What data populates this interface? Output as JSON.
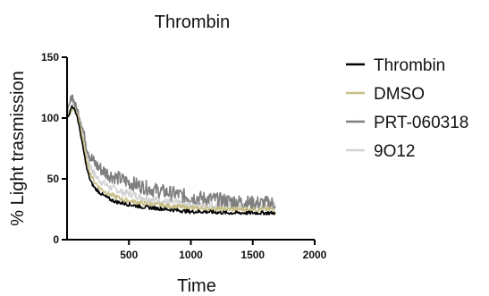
{
  "chart_data": {
    "type": "line",
    "title": "Thrombin",
    "xlabel": "Time",
    "ylabel": "% Light trasmission",
    "xlim": [
      0,
      2000
    ],
    "ylim": [
      0,
      150
    ],
    "xticks": [
      500,
      1000,
      1500,
      2000
    ],
    "yticks": [
      0,
      50,
      100,
      150
    ],
    "grid": false,
    "legend_position": "right",
    "series": [
      {
        "name": "Thrombin",
        "color": "#000000",
        "noise": 1.5,
        "points": [
          [
            0,
            100
          ],
          [
            20,
            104
          ],
          [
            40,
            110
          ],
          [
            60,
            107
          ],
          [
            80,
            102
          ],
          [
            100,
            92
          ],
          [
            130,
            75
          ],
          [
            160,
            58
          ],
          [
            190,
            48
          ],
          [
            220,
            43
          ],
          [
            260,
            39
          ],
          [
            300,
            36
          ],
          [
            350,
            33
          ],
          [
            400,
            31
          ],
          [
            450,
            30
          ],
          [
            500,
            29
          ],
          [
            600,
            27
          ],
          [
            700,
            26
          ],
          [
            800,
            25
          ],
          [
            900,
            24
          ],
          [
            1000,
            23
          ],
          [
            1100,
            23
          ],
          [
            1200,
            22.5
          ],
          [
            1300,
            22
          ],
          [
            1400,
            22
          ],
          [
            1500,
            22
          ],
          [
            1600,
            22
          ],
          [
            1680,
            22
          ]
        ]
      },
      {
        "name": "DMSO",
        "color": "#c8bf86",
        "noise": 2,
        "points": [
          [
            0,
            101
          ],
          [
            30,
            104
          ],
          [
            50,
            108
          ],
          [
            80,
            105
          ],
          [
            100,
            97
          ],
          [
            130,
            82
          ],
          [
            160,
            64
          ],
          [
            190,
            54
          ],
          [
            220,
            48
          ],
          [
            260,
            43
          ],
          [
            300,
            40
          ],
          [
            350,
            37
          ],
          [
            400,
            35
          ],
          [
            450,
            33
          ],
          [
            500,
            32
          ],
          [
            600,
            30
          ],
          [
            700,
            29
          ],
          [
            800,
            28
          ],
          [
            900,
            27
          ],
          [
            1000,
            26
          ],
          [
            1100,
            25.5
          ],
          [
            1200,
            25
          ],
          [
            1300,
            25
          ],
          [
            1400,
            25
          ],
          [
            1500,
            25
          ],
          [
            1600,
            25
          ],
          [
            1680,
            25
          ]
        ]
      },
      {
        "name": "PRT-060318",
        "color": "#7f7f7f",
        "noise": 6,
        "points": [
          [
            0,
            103
          ],
          [
            20,
            110
          ],
          [
            40,
            120
          ],
          [
            60,
            112
          ],
          [
            80,
            107
          ],
          [
            100,
            102
          ],
          [
            130,
            90
          ],
          [
            160,
            77
          ],
          [
            190,
            68
          ],
          [
            220,
            63
          ],
          [
            260,
            59
          ],
          [
            300,
            56
          ],
          [
            350,
            53
          ],
          [
            400,
            51
          ],
          [
            450,
            49
          ],
          [
            500,
            47
          ],
          [
            600,
            44
          ],
          [
            700,
            41
          ],
          [
            800,
            39
          ],
          [
            900,
            37
          ],
          [
            1000,
            35
          ],
          [
            1100,
            34
          ],
          [
            1200,
            33
          ],
          [
            1300,
            32
          ],
          [
            1400,
            31
          ],
          [
            1500,
            30
          ],
          [
            1600,
            30
          ],
          [
            1680,
            30
          ]
        ]
      },
      {
        "name": "9O12",
        "color": "#d2d2d2",
        "noise": 3,
        "points": [
          [
            0,
            102
          ],
          [
            30,
            108
          ],
          [
            50,
            112
          ],
          [
            80,
            107
          ],
          [
            100,
            100
          ],
          [
            130,
            86
          ],
          [
            160,
            70
          ],
          [
            190,
            60
          ],
          [
            220,
            54
          ],
          [
            260,
            49
          ],
          [
            300,
            46
          ],
          [
            350,
            43
          ],
          [
            400,
            41
          ],
          [
            450,
            39
          ],
          [
            500,
            38
          ],
          [
            600,
            35
          ],
          [
            700,
            33
          ],
          [
            800,
            31
          ],
          [
            900,
            30
          ],
          [
            1000,
            29
          ],
          [
            1100,
            28
          ],
          [
            1200,
            28
          ],
          [
            1300,
            28
          ],
          [
            1400,
            28
          ],
          [
            1500,
            28
          ],
          [
            1600,
            28
          ],
          [
            1680,
            28
          ]
        ]
      }
    ]
  }
}
